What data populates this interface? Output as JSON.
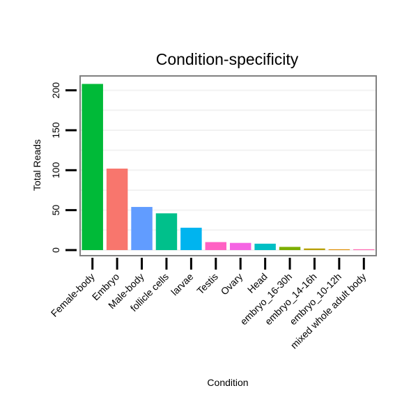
{
  "chart_data": {
    "type": "bar",
    "title": "Condition-specificity",
    "xlabel": "Condition",
    "ylabel": "Total Reads",
    "ylim": [
      -7,
      218
    ],
    "yticks": [
      0,
      50,
      100,
      150,
      200
    ],
    "ytick_labels": [
      "0",
      "50",
      "100",
      "150",
      "200"
    ],
    "grid": true,
    "categories": [
      "Female-body",
      "Embryo",
      "Male-body",
      "follicle cells",
      "larvae",
      "Testis",
      "Ovary",
      "Head",
      "embryo_16-30h",
      "embryo_14-16h",
      "embryo_10-12h",
      "mixed whole adult body"
    ],
    "values": [
      208,
      102,
      54,
      46,
      28,
      10,
      9,
      8,
      4,
      2,
      1,
      1
    ],
    "colors": [
      "#00BA38",
      "#F8766D",
      "#619CFF",
      "#00C08B",
      "#00B4EF",
      "#FF61C3",
      "#F564E3",
      "#00BFC4",
      "#7CAE00",
      "#B79F00",
      "#DE8C00",
      "#FF64B0"
    ]
  }
}
